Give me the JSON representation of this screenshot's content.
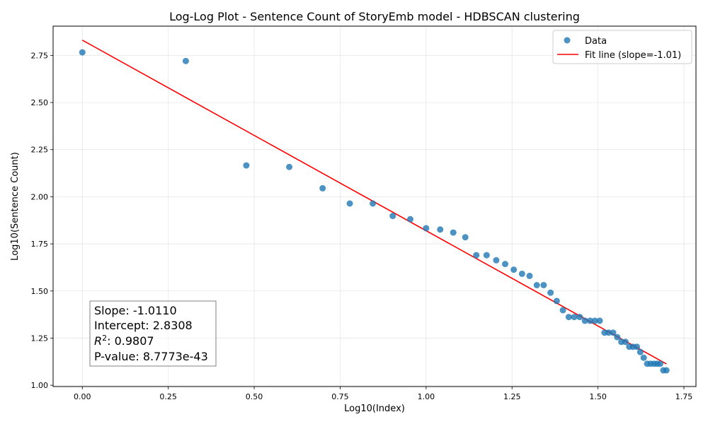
{
  "chart_data": {
    "type": "scatter",
    "title": "Log-Log Plot - Sentence Count of StoryEmb model - HDBSCAN clustering",
    "xlabel": "Log10(Index)",
    "ylabel": "Log10(Sentence Count)",
    "xlim": [
      -0.085,
      1.785
    ],
    "ylim": [
      0.993,
      2.905
    ],
    "xticks": [
      0.0,
      0.25,
      0.5,
      0.75,
      1.0,
      1.25,
      1.5,
      1.75
    ],
    "xtick_labels": [
      "0.00",
      "0.25",
      "0.50",
      "0.75",
      "1.00",
      "1.25",
      "1.50",
      "1.75"
    ],
    "yticks": [
      1.0,
      1.25,
      1.5,
      1.75,
      2.0,
      2.25,
      2.5,
      2.75
    ],
    "ytick_labels": [
      "1.00",
      "1.25",
      "1.50",
      "1.75",
      "2.00",
      "2.25",
      "2.50",
      "2.75"
    ],
    "grid": true,
    "legend_position": "top-right",
    "colors": {
      "data": "#1f77b4",
      "fit": "#ff0000"
    },
    "series": [
      {
        "name": "Data",
        "kind": "scatter",
        "x": [
          0.0,
          0.301,
          0.477,
          0.602,
          0.699,
          0.778,
          0.845,
          0.903,
          0.954,
          1.0,
          1.041,
          1.079,
          1.114,
          1.146,
          1.176,
          1.204,
          1.23,
          1.255,
          1.279,
          1.301,
          1.322,
          1.342,
          1.362,
          1.38,
          1.398,
          1.415,
          1.431,
          1.447,
          1.462,
          1.477,
          1.491,
          1.505,
          1.519,
          1.531,
          1.544,
          1.556,
          1.568,
          1.58,
          1.591,
          1.602,
          1.613,
          1.623,
          1.633,
          1.643,
          1.653,
          1.663,
          1.672,
          1.681,
          1.69,
          1.699
        ],
        "y": [
          2.766,
          2.72,
          2.166,
          2.158,
          2.045,
          1.964,
          1.964,
          1.898,
          1.881,
          1.833,
          1.826,
          1.81,
          1.785,
          1.69,
          1.69,
          1.663,
          1.643,
          1.613,
          1.591,
          1.58,
          1.531,
          1.531,
          1.491,
          1.447,
          1.398,
          1.362,
          1.362,
          1.362,
          1.342,
          1.342,
          1.342,
          1.342,
          1.279,
          1.279,
          1.279,
          1.255,
          1.23,
          1.23,
          1.204,
          1.204,
          1.204,
          1.176,
          1.146,
          1.114,
          1.114,
          1.114,
          1.114,
          1.114,
          1.079,
          1.079
        ]
      },
      {
        "name": "Fit line (slope=-1.01)",
        "kind": "line",
        "slope": -1.011,
        "intercept": 2.8308,
        "x_range": [
          0.0,
          1.699
        ]
      }
    ],
    "stats": {
      "slope": "Slope: -1.0110",
      "intercept": "Intercept: 2.8308",
      "r2_value": ": 0.9807",
      "pvalue": "P-value: 8.7773e-43"
    }
  }
}
